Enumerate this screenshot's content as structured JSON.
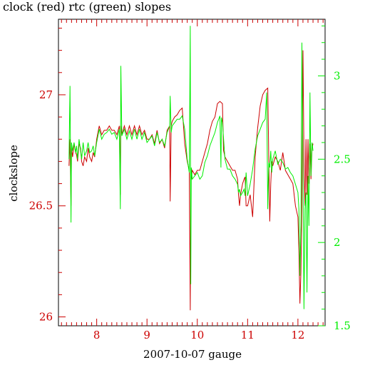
{
  "chart_data": {
    "type": "line",
    "title": "clock (red) rtc (green) slopes",
    "xlabel": "2007-10-07 gauge",
    "ylabel": "clockslope",
    "xlim": [
      7.24,
      12.54
    ],
    "ylim": [
      25.96,
      27.34
    ],
    "y2lim": [
      1.5,
      3.34
    ],
    "x_ticks": [
      8,
      9,
      10,
      11,
      12
    ],
    "y_ticks": [
      26,
      26.5,
      27
    ],
    "y2_ticks": [
      1.5,
      2,
      2.5,
      3
    ],
    "x_tick_labels": [
      "8",
      "9",
      "10",
      "11",
      "12"
    ],
    "y_tick_labels": [
      "26",
      "26.5",
      "27"
    ],
    "y2_tick_labels": [
      "1.5",
      "2",
      "2.5",
      "3"
    ],
    "colors": {
      "clock": "#cc0000",
      "rtc": "#00ee00",
      "axis_left": "#cc0000",
      "axis_right": "#00ee00",
      "frame": "#000000"
    },
    "series": [
      {
        "axis": "left",
        "color": "#cc0000",
        "x": [
          7.45,
          7.47,
          7.49,
          7.5,
          7.52,
          7.55,
          7.58,
          7.6,
          7.62,
          7.65,
          7.68,
          7.7,
          7.73,
          7.76,
          7.8,
          7.83,
          7.86,
          7.9,
          7.93,
          7.96,
          8.0,
          8.05,
          8.1,
          8.15,
          8.2,
          8.25,
          8.3,
          8.35,
          8.4,
          8.45,
          8.47,
          8.48,
          8.5,
          8.55,
          8.6,
          8.65,
          8.7,
          8.75,
          8.8,
          8.85,
          8.9,
          8.95,
          9.0,
          9.05,
          9.1,
          9.15,
          9.2,
          9.25,
          9.3,
          9.35,
          9.4,
          9.45,
          9.46,
          9.48,
          9.5,
          9.55,
          9.6,
          9.65,
          9.7,
          9.75,
          9.8,
          9.84,
          9.86,
          9.87,
          9.88,
          9.9,
          9.95,
          10.0,
          10.05,
          10.1,
          10.15,
          10.2,
          10.25,
          10.3,
          10.35,
          10.4,
          10.45,
          10.5,
          10.52,
          10.55,
          10.6,
          10.65,
          10.7,
          10.75,
          10.8,
          10.82,
          10.84,
          10.86,
          10.9,
          10.93,
          10.95,
          10.97,
          11.0,
          11.05,
          11.1,
          11.15,
          11.2,
          11.25,
          11.3,
          11.35,
          11.4,
          11.42,
          11.44,
          11.46,
          11.48,
          11.5,
          11.55,
          11.6,
          11.65,
          11.7,
          11.75,
          11.8,
          11.85,
          11.9,
          11.95,
          12.0,
          12.02,
          12.04,
          12.06,
          12.08,
          12.1,
          12.12,
          12.14,
          12.16,
          12.18,
          12.2,
          12.22,
          12.24,
          12.26,
          12.28,
          12.3
        ],
        "values": [
          26.68,
          26.8,
          26.5,
          26.76,
          26.72,
          26.78,
          26.74,
          26.73,
          26.7,
          26.78,
          26.76,
          26.7,
          26.68,
          26.72,
          26.7,
          26.76,
          26.72,
          26.7,
          26.74,
          26.72,
          26.8,
          26.86,
          26.82,
          26.84,
          26.84,
          26.86,
          26.84,
          26.84,
          26.82,
          26.86,
          26.55,
          26.86,
          26.82,
          26.86,
          26.82,
          26.86,
          26.82,
          26.86,
          26.82,
          26.86,
          26.82,
          26.84,
          26.8,
          26.8,
          26.82,
          26.78,
          26.84,
          26.78,
          26.8,
          26.76,
          26.84,
          26.86,
          26.52,
          26.86,
          26.88,
          26.9,
          26.91,
          26.93,
          26.94,
          26.78,
          26.7,
          26.66,
          26.03,
          26.66,
          26.62,
          26.66,
          26.64,
          26.66,
          26.66,
          26.7,
          26.74,
          26.78,
          26.84,
          26.88,
          26.9,
          26.96,
          26.97,
          26.96,
          26.75,
          26.72,
          26.7,
          26.68,
          26.66,
          26.66,
          26.62,
          26.55,
          26.5,
          26.55,
          26.6,
          26.62,
          26.63,
          26.5,
          26.5,
          26.55,
          26.45,
          26.72,
          26.85,
          26.95,
          27.0,
          27.02,
          27.03,
          26.72,
          26.43,
          26.6,
          26.7,
          26.68,
          26.72,
          26.7,
          26.66,
          26.74,
          26.66,
          26.64,
          26.62,
          26.6,
          26.5,
          26.45,
          26.3,
          26.06,
          26.2,
          26.5,
          27.2,
          26.7,
          26.5,
          26.8,
          26.55,
          26.8,
          26.6,
          26.78,
          26.62,
          26.76,
          26.78
        ]
      },
      {
        "axis": "right",
        "color": "#00ee00",
        "x": [
          7.45,
          7.47,
          7.49,
          7.5,
          7.52,
          7.55,
          7.58,
          7.6,
          7.62,
          7.65,
          7.68,
          7.7,
          7.73,
          7.76,
          7.8,
          7.83,
          7.86,
          7.9,
          7.93,
          7.96,
          8.0,
          8.05,
          8.1,
          8.15,
          8.2,
          8.25,
          8.3,
          8.35,
          8.4,
          8.45,
          8.47,
          8.48,
          8.5,
          8.55,
          8.6,
          8.65,
          8.7,
          8.75,
          8.8,
          8.85,
          8.9,
          8.95,
          9.0,
          9.05,
          9.1,
          9.15,
          9.2,
          9.25,
          9.3,
          9.35,
          9.4,
          9.45,
          9.46,
          9.48,
          9.5,
          9.55,
          9.6,
          9.65,
          9.7,
          9.75,
          9.8,
          9.84,
          9.86,
          9.87,
          9.88,
          9.9,
          9.95,
          10.0,
          10.05,
          10.1,
          10.15,
          10.2,
          10.25,
          10.3,
          10.35,
          10.4,
          10.45,
          10.47,
          10.48,
          10.5,
          10.55,
          10.6,
          10.65,
          10.7,
          10.75,
          10.8,
          10.82,
          10.84,
          10.86,
          10.9,
          10.93,
          10.95,
          10.97,
          11.0,
          11.05,
          11.1,
          11.15,
          11.2,
          11.25,
          11.3,
          11.35,
          11.38,
          11.4,
          11.42,
          11.44,
          11.46,
          11.48,
          11.5,
          11.55,
          11.6,
          11.65,
          11.7,
          11.75,
          11.8,
          11.85,
          11.9,
          11.95,
          12.0,
          12.02,
          12.04,
          12.06,
          12.08,
          12.1,
          12.12,
          12.14,
          12.16,
          12.18,
          12.2,
          12.22,
          12.24,
          12.26,
          12.28,
          12.3
        ],
        "values": [
          2.5,
          2.94,
          2.12,
          2.6,
          2.55,
          2.6,
          2.54,
          2.58,
          2.5,
          2.62,
          2.55,
          2.5,
          2.6,
          2.52,
          2.55,
          2.6,
          2.54,
          2.55,
          2.58,
          2.52,
          2.6,
          2.68,
          2.62,
          2.65,
          2.66,
          2.68,
          2.65,
          2.66,
          2.62,
          2.68,
          2.2,
          3.06,
          2.64,
          2.68,
          2.62,
          2.67,
          2.62,
          2.68,
          2.62,
          2.68,
          2.62,
          2.66,
          2.6,
          2.62,
          2.64,
          2.58,
          2.66,
          2.6,
          2.62,
          2.58,
          2.66,
          2.7,
          2.88,
          2.66,
          2.7,
          2.72,
          2.74,
          2.74,
          2.76,
          2.68,
          2.5,
          2.42,
          3.3,
          1.75,
          2.45,
          2.38,
          2.4,
          2.42,
          2.38,
          2.4,
          2.48,
          2.52,
          2.58,
          2.62,
          2.66,
          2.72,
          2.76,
          2.45,
          2.75,
          2.72,
          2.5,
          2.44,
          2.44,
          2.4,
          2.38,
          2.35,
          2.3,
          2.32,
          2.28,
          2.3,
          2.32,
          2.28,
          2.42,
          2.28,
          2.35,
          2.44,
          2.56,
          2.64,
          2.68,
          2.72,
          2.74,
          2.9,
          2.2,
          2.48,
          2.45,
          2.55,
          2.42,
          2.5,
          2.55,
          2.47,
          2.5,
          2.48,
          2.44,
          2.45,
          2.42,
          2.4,
          2.35,
          2.3,
          2.2,
          1.8,
          2.1,
          3.2,
          2.4,
          1.6,
          2.2,
          2.3,
          1.7,
          2.4,
          2.1,
          2.9,
          2.4,
          2.6,
          2.55
        ]
      }
    ]
  }
}
